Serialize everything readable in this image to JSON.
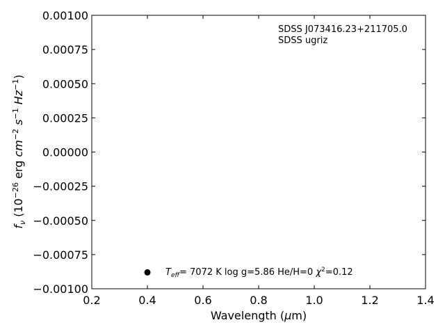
{
  "chart_data": {
    "type": "scatter",
    "title": "",
    "xlabel": "Wavelength (μm)",
    "ylabel": "f_ν (10^-26 erg cm^-2 s^-1 Hz^-1)",
    "xlim": [
      0.2,
      1.4
    ],
    "ylim": [
      -0.001,
      0.001
    ],
    "xticks": [
      0.2,
      0.4,
      0.6,
      0.8,
      1.0,
      1.2,
      1.4
    ],
    "xtick_labels": [
      "0.2",
      "0.4",
      "0.6",
      "0.8",
      "1.0",
      "1.2",
      "1.4"
    ],
    "yticks": [
      0.001,
      0.00075,
      0.0005,
      0.00025,
      0.0,
      -0.00025,
      -0.0005,
      -0.00075,
      -0.001
    ],
    "ytick_labels": [
      "0.00100",
      "0.00075",
      "0.00050",
      "0.00025",
      "0.00000",
      "−0.00025",
      "−0.00050",
      "−0.00075",
      "−0.00100"
    ],
    "grid": false,
    "annotations": {
      "object": "SDSS J073416.23+211705.0",
      "survey": "SDSS ugriz",
      "fit_teff_value": "7072 K",
      "fit_logg": "log g=5.86",
      "fit_heh": "He/H=0",
      "fit_chi2_value": "=0.12"
    },
    "series": [
      {
        "marker": "circle",
        "color": "#000000",
        "x": [
          0.4
        ],
        "y": [
          -0.00088
        ]
      }
    ]
  }
}
